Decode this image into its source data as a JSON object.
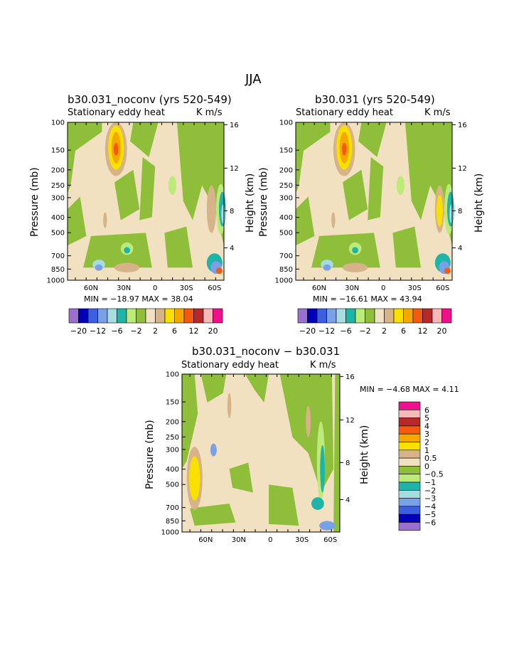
{
  "figure": {
    "title": "JJA"
  },
  "palette": {
    "purple": "#9a6fd0",
    "navy": "#0000b8",
    "blue": "#3c5ee0",
    "lightblue": "#7aa0e8",
    "paleblue": "#a6dde0",
    "teal": "#20b4a8",
    "lime": "#bceb7a",
    "green": "#8fbf3a",
    "wheat": "#f2e1c0",
    "tan": "#d6b388",
    "yellow": "#f8e000",
    "orange": "#f7a800",
    "redorange": "#f45a10",
    "darkred": "#b82828",
    "pink": "#f7b8b8",
    "magenta": "#f0108e"
  },
  "chart_data": [
    {
      "type": "contour",
      "title": "b30.031_noconv (yrs 520-549)",
      "subtitle_left": "Stationary eddy heat",
      "subtitle_right": "K m/s",
      "ylabel": "Pressure (mb)",
      "y2label": "Height (km)",
      "yticks": [
        "100",
        "150",
        "200",
        "250",
        "300",
        "400",
        "500",
        "700",
        "850",
        "1000"
      ],
      "y2ticks": [
        "16",
        "12",
        "8",
        "4"
      ],
      "xticks": [
        "60N",
        "30N",
        "0",
        "30S",
        "60S"
      ],
      "minmax": "MIN = −18.97   MAX =  38.04",
      "min": -18.97,
      "max": 38.04,
      "colorbar_labels": [
        "−20",
        "−12",
        "−6",
        "−2",
        "2",
        "6",
        "12",
        "20"
      ]
    },
    {
      "type": "contour",
      "title": "b30.031 (yrs 520-549)",
      "subtitle_left": "Stationary eddy heat",
      "subtitle_right": "K m/s",
      "ylabel": "Pressure (mb)",
      "y2label": "Height (km)",
      "yticks": [
        "100",
        "150",
        "200",
        "250",
        "300",
        "400",
        "500",
        "700",
        "850",
        "1000"
      ],
      "y2ticks": [
        "16",
        "12",
        "8",
        "4"
      ],
      "xticks": [
        "60N",
        "30N",
        "0",
        "30S",
        "60S"
      ],
      "minmax": "MIN = −16.61   MAX =  43.94",
      "min": -16.61,
      "max": 43.94,
      "colorbar_labels": [
        "−20",
        "−12",
        "−6",
        "−2",
        "2",
        "6",
        "12",
        "20"
      ]
    },
    {
      "type": "contour",
      "title": "b30.031_noconv − b30.031",
      "subtitle_left": "Stationary eddy heat",
      "subtitle_right": "K m/s",
      "ylabel": "Pressure (mb)",
      "y2label": "Height (km)",
      "yticks": [
        "100",
        "150",
        "200",
        "250",
        "300",
        "400",
        "500",
        "700",
        "850",
        "1000"
      ],
      "y2ticks": [
        "16",
        "12",
        "8",
        "4"
      ],
      "xticks": [
        "60N",
        "30N",
        "0",
        "30S",
        "60S"
      ],
      "minmax": "MIN =   −4.68   MAX =    4.11",
      "min": -4.68,
      "max": 4.11,
      "colorbar_labels": [
        "6",
        "5",
        "4",
        "3",
        "2",
        "1",
        "0.5",
        "0",
        "−0.5",
        "−1",
        "−2",
        "−3",
        "−4",
        "−5",
        "−6"
      ]
    }
  ]
}
